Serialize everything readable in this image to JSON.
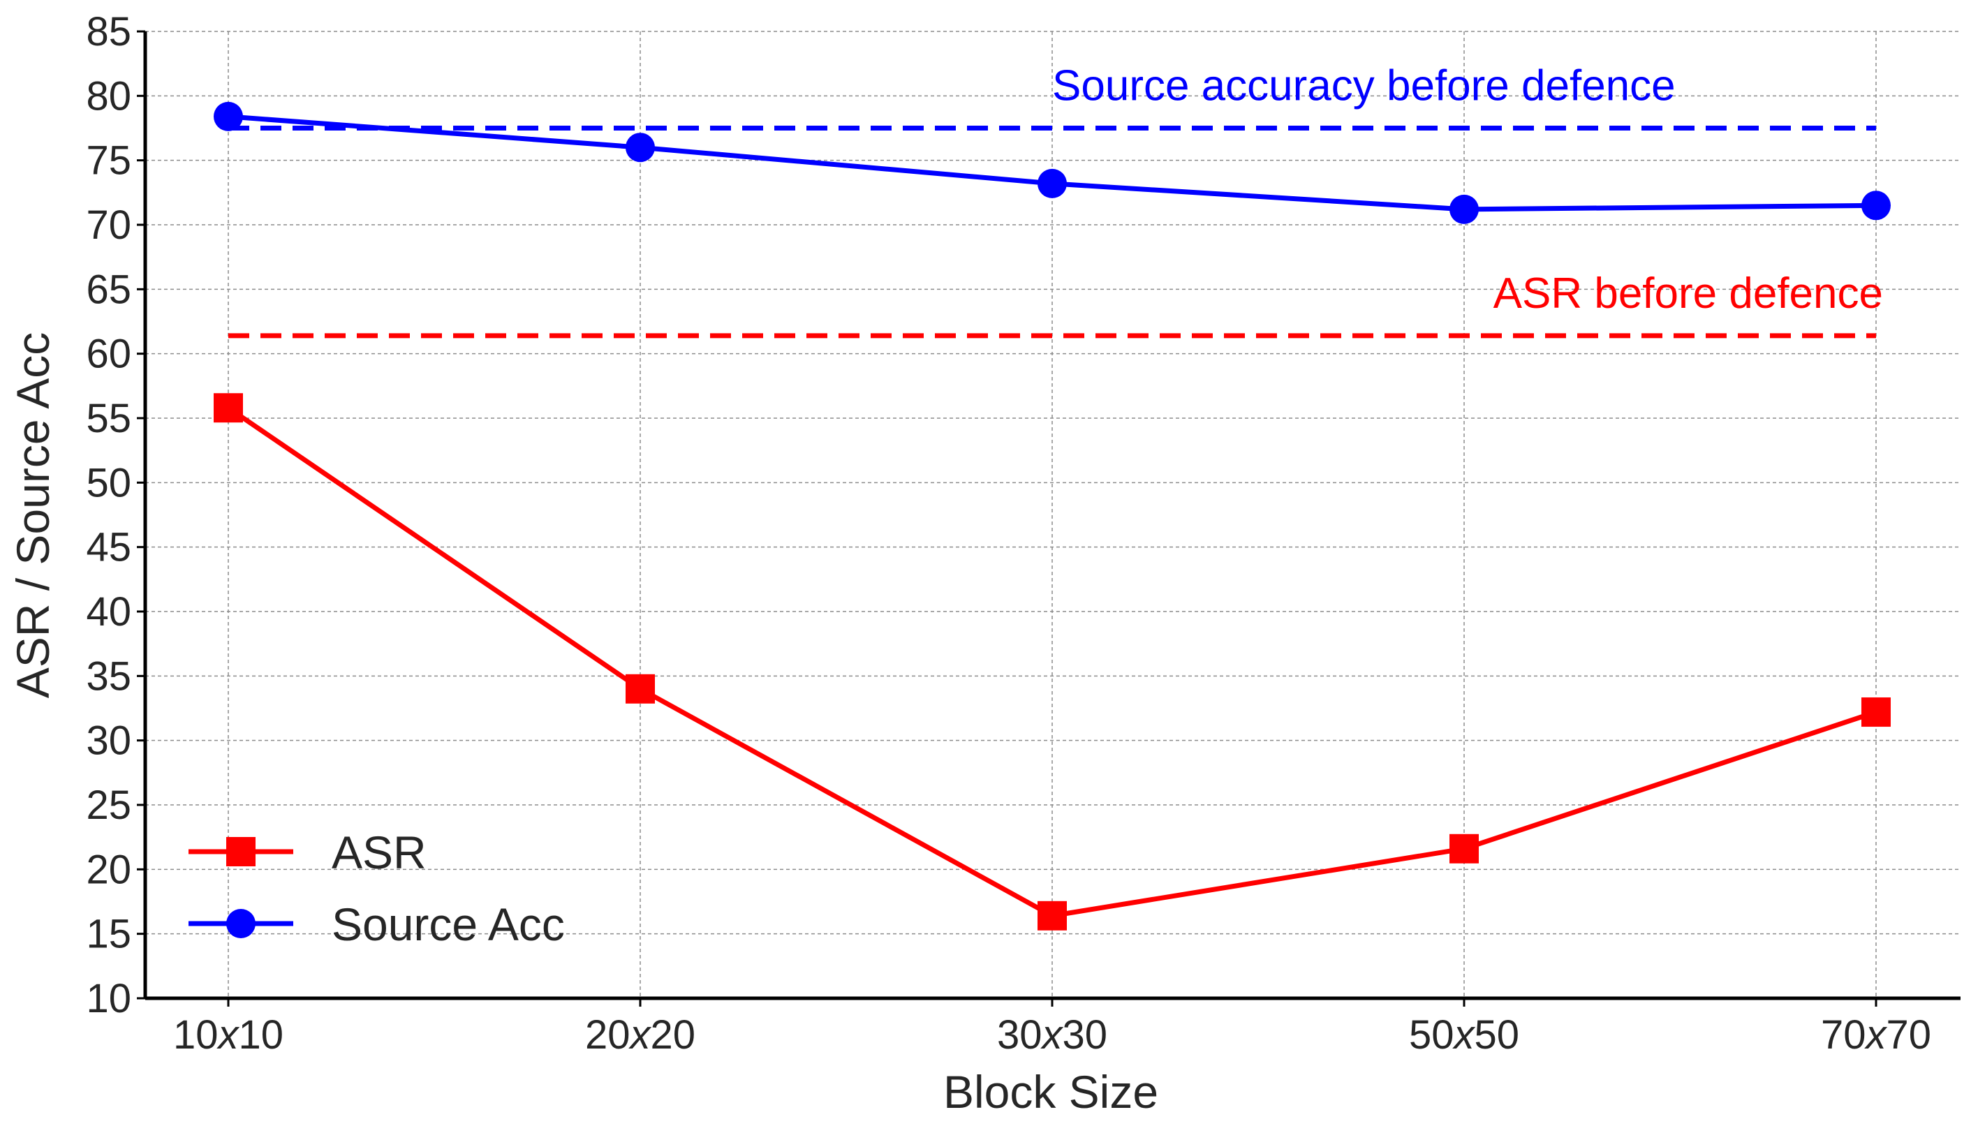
{
  "chart_data": {
    "type": "line",
    "xlabel": "Block Size",
    "ylabel": "ASR / Source Acc",
    "categories": [
      "10x10",
      "20x20",
      "30x30",
      "50x50",
      "70x70"
    ],
    "ylim": [
      10,
      85
    ],
    "yticks": [
      10,
      15,
      20,
      25,
      30,
      35,
      40,
      45,
      50,
      55,
      60,
      65,
      70,
      75,
      80,
      85
    ],
    "grid": true,
    "legend_position": "lower-left",
    "series": [
      {
        "name": "ASR",
        "color": "#ff0000",
        "marker": "square",
        "values": [
          55.8,
          34.0,
          16.4,
          21.6,
          32.2
        ]
      },
      {
        "name": "Source Acc",
        "color": "#0000ff",
        "marker": "circle",
        "values": [
          78.4,
          76.0,
          73.2,
          71.2,
          71.5
        ]
      }
    ],
    "reference_lines": [
      {
        "label": "Source accuracy before defence",
        "value": 77.5,
        "color": "#0000ff",
        "style": "dashed"
      },
      {
        "label": "ASR before defence",
        "value": 61.4,
        "color": "#ff0000",
        "style": "dashed"
      }
    ]
  }
}
